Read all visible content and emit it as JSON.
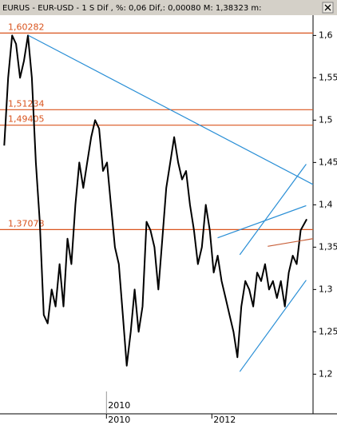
{
  "chart_data": {
    "type": "line",
    "header_text": "EURUS - EUR-USD - 1 S Dif , %: 0,06 Dif,: 0,00080 M: 1,38323 m:",
    "cursor_label": "2010",
    "color": "#000000",
    "x": [
      2008.06,
      2008.135,
      2008.21,
      2008.285,
      2008.36,
      2008.435,
      2008.51,
      2008.585,
      2008.66,
      2008.735,
      2008.81,
      2008.885,
      2008.96,
      2009.035,
      2009.11,
      2009.185,
      2009.26,
      2009.335,
      2009.41,
      2009.485,
      2009.56,
      2009.635,
      2009.71,
      2009.785,
      2009.86,
      2009.935,
      2010.01,
      2010.085,
      2010.16,
      2010.235,
      2010.31,
      2010.385,
      2010.46,
      2010.535,
      2010.61,
      2010.685,
      2010.76,
      2010.835,
      2010.91,
      2010.985,
      2011.06,
      2011.135,
      2011.21,
      2011.285,
      2011.36,
      2011.435,
      2011.51,
      2011.585,
      2011.66,
      2011.735,
      2011.81,
      2011.885,
      2011.96,
      2012.035,
      2012.11,
      2012.185,
      2012.26,
      2012.335,
      2012.41,
      2012.485,
      2012.56,
      2012.635,
      2012.71,
      2012.785,
      2012.86,
      2012.935,
      2013.01,
      2013.085,
      2013.16,
      2013.235,
      2013.31,
      2013.385,
      2013.46,
      2013.535,
      2013.61,
      2013.685,
      2013.8
    ],
    "values": [
      1.47,
      1.55,
      1.6,
      1.59,
      1.55,
      1.57,
      1.6,
      1.55,
      1.45,
      1.38,
      1.27,
      1.26,
      1.3,
      1.28,
      1.33,
      1.28,
      1.36,
      1.33,
      1.4,
      1.45,
      1.42,
      1.45,
      1.48,
      1.5,
      1.49,
      1.44,
      1.45,
      1.4,
      1.35,
      1.33,
      1.27,
      1.21,
      1.25,
      1.3,
      1.25,
      1.28,
      1.38,
      1.37,
      1.35,
      1.3,
      1.36,
      1.42,
      1.45,
      1.48,
      1.45,
      1.43,
      1.44,
      1.4,
      1.37,
      1.33,
      1.35,
      1.4,
      1.37,
      1.32,
      1.34,
      1.31,
      1.29,
      1.27,
      1.25,
      1.22,
      1.28,
      1.31,
      1.3,
      1.28,
      1.32,
      1.31,
      1.33,
      1.3,
      1.31,
      1.29,
      1.31,
      1.28,
      1.32,
      1.34,
      1.33,
      1.37,
      1.383
    ],
    "xlim": [
      2007.98,
      2013.92
    ],
    "xticks": [
      2010,
      2012
    ],
    "ylim": [
      1.156,
      1.623
    ],
    "yticks": [
      {
        "value": 1.2,
        "label": "1,2"
      },
      {
        "value": 1.25,
        "label": "1,25"
      },
      {
        "value": 1.3,
        "label": "1,3"
      },
      {
        "value": 1.35,
        "label": "1,35"
      },
      {
        "value": 1.4,
        "label": "1,4"
      },
      {
        "value": 1.45,
        "label": "1,45"
      },
      {
        "value": 1.5,
        "label": "1,5"
      },
      {
        "value": 1.55,
        "label": "1,55"
      },
      {
        "value": 1.6,
        "label": "1,6"
      }
    ],
    "levels": {
      "color": "#d9541e",
      "values": [
        {
          "value": 1.60282,
          "label": "1,60282"
        },
        {
          "value": 1.51234,
          "label": "1,51234"
        },
        {
          "value": 1.49405,
          "label": "1,49405"
        },
        {
          "value": 1.37078,
          "label": "1,37078"
        }
      ]
    },
    "trendlines": [
      {
        "color": "#2a8fd6",
        "x": [
          2008.52,
          2013.92
        ],
        "y": [
          1.6,
          1.424
        ]
      },
      {
        "color": "#2a8fd6",
        "x": [
          2012.53,
          2013.79
        ],
        "y": [
          1.203,
          1.311
        ]
      },
      {
        "color": "#2a8fd6",
        "x": [
          2012.53,
          2013.79
        ],
        "y": [
          1.341,
          1.448
        ]
      },
      {
        "color": "#2a8fd6",
        "x": [
          2012.11,
          2013.79
        ],
        "y": [
          1.361,
          1.399
        ]
      },
      {
        "color": "#c8603a",
        "x": [
          2013.06,
          2013.92
        ],
        "y": [
          1.351,
          1.36
        ]
      }
    ]
  }
}
